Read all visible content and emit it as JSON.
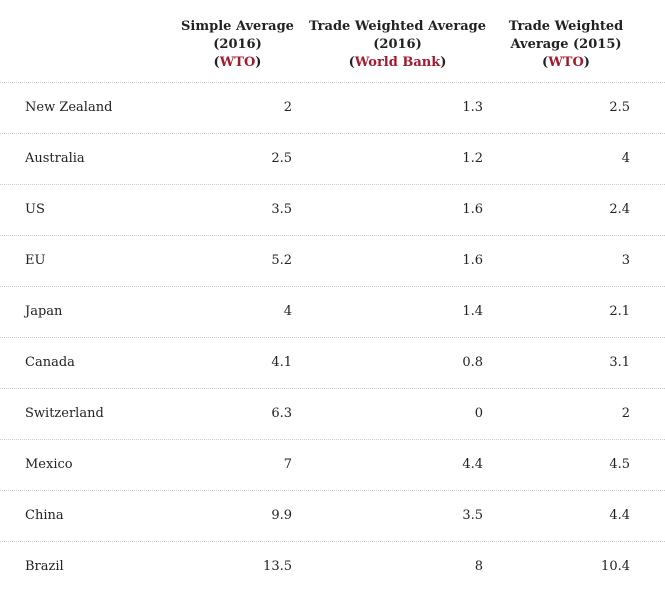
{
  "header": {
    "col1": {
      "line1": "Simple Average",
      "line2": "(2016)",
      "source": "WTO"
    },
    "col2": {
      "line1": "Trade Weighted Average",
      "line2": "(2016)",
      "source": "World Bank"
    },
    "col3": {
      "line1": "Trade Weighted",
      "line2": "Average (2015)",
      "source": "WTO"
    }
  },
  "rows": [
    {
      "country": "New Zealand",
      "simple_2016": "2",
      "weighted_2016": "1.3",
      "weighted_2015": "2.5"
    },
    {
      "country": "Australia",
      "simple_2016": "2.5",
      "weighted_2016": "1.2",
      "weighted_2015": "4"
    },
    {
      "country": "US",
      "simple_2016": "3.5",
      "weighted_2016": "1.6",
      "weighted_2015": "2.4"
    },
    {
      "country": "EU",
      "simple_2016": "5.2",
      "weighted_2016": "1.6",
      "weighted_2015": "3"
    },
    {
      "country": "Japan",
      "simple_2016": "4",
      "weighted_2016": "1.4",
      "weighted_2015": "2.1"
    },
    {
      "country": "Canada",
      "simple_2016": "4.1",
      "weighted_2016": "0.8",
      "weighted_2015": "3.1"
    },
    {
      "country": "Switzerland",
      "simple_2016": "6.3",
      "weighted_2016": "0",
      "weighted_2015": "2"
    },
    {
      "country": "Mexico",
      "simple_2016": "7",
      "weighted_2016": "4.4",
      "weighted_2015": "4.5"
    },
    {
      "country": "China",
      "simple_2016": "9.9",
      "weighted_2016": "3.5",
      "weighted_2015": "4.4"
    },
    {
      "country": "Brazil",
      "simple_2016": "13.5",
      "weighted_2016": "8",
      "weighted_2015": "10.4"
    }
  ],
  "colors": {
    "source_link": "#a31a2e",
    "text": "#222222",
    "divider": "#c8c8c8"
  }
}
